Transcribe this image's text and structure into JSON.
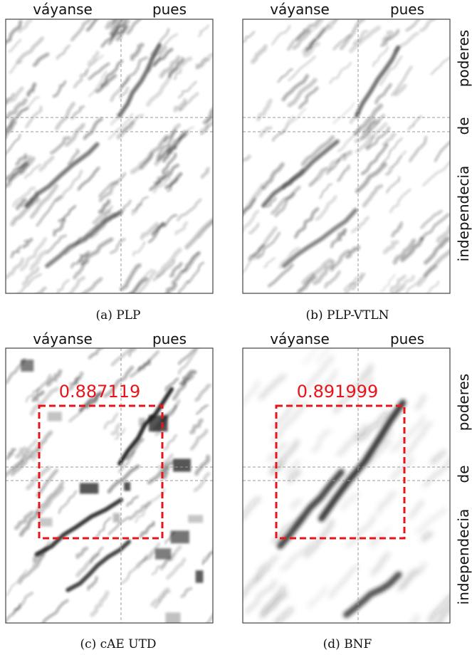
{
  "panels": [
    {
      "id": "a",
      "caption": "(a) PLP",
      "top_words": [
        "váyanse",
        "pues"
      ],
      "side_words": [
        "poderes",
        "de",
        "independecia"
      ],
      "score": null,
      "style": "plp"
    },
    {
      "id": "b",
      "caption": "(b) PLP-VTLN",
      "top_words": [
        "váyanse",
        "pues"
      ],
      "side_words": [
        "poderes",
        "de",
        "independecia"
      ],
      "score": null,
      "style": "plp-vtln"
    },
    {
      "id": "c",
      "caption": "(c) cAE UTD",
      "top_words": [
        "váyanse",
        "pues"
      ],
      "side_words": [
        "poderes",
        "de",
        "independecia"
      ],
      "score": "0.887119",
      "style": "cae"
    },
    {
      "id": "d",
      "caption": "(d) BNF",
      "top_words": [
        "váyanse",
        "pues"
      ],
      "side_words": [
        "poderes",
        "de",
        "independecia"
      ],
      "score": "0.891999",
      "style": "bnf"
    }
  ],
  "colors": {
    "frame": "#444444",
    "divider": "#999999",
    "highlight": "#e8141b",
    "ink": "#1a1a1a"
  }
}
